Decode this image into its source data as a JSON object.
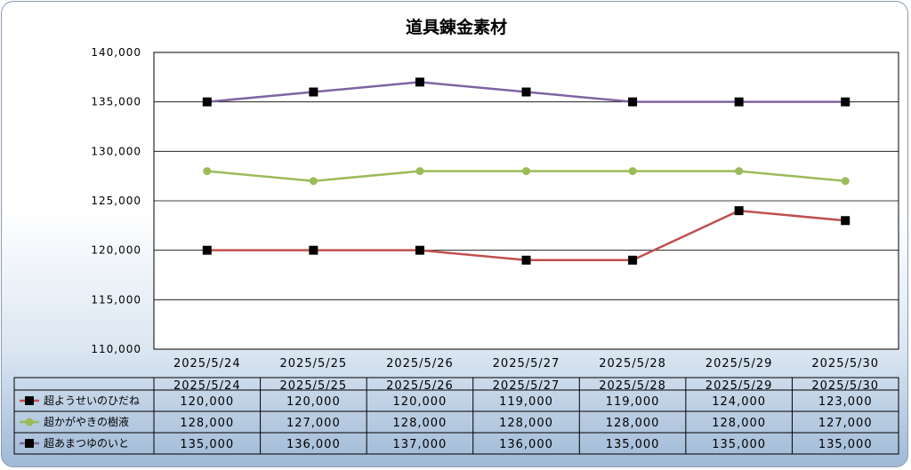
{
  "chart_data": {
    "type": "line",
    "title": "道具錬金素材",
    "categories": [
      "2025/5/24",
      "2025/5/25",
      "2025/5/26",
      "2025/5/27",
      "2025/5/28",
      "2025/5/29",
      "2025/5/30"
    ],
    "ylim": [
      110000,
      140000
    ],
    "yticks": [
      110000,
      115000,
      120000,
      125000,
      130000,
      135000,
      140000
    ],
    "grid": true,
    "series": [
      {
        "name": "超ようせいのひだね",
        "color": "#c0504d",
        "marker": "square",
        "values": [
          120000,
          120000,
          120000,
          119000,
          119000,
          124000,
          123000
        ]
      },
      {
        "name": "超かがやきの樹液",
        "color": "#9bbb59",
        "marker": "circle",
        "values": [
          128000,
          127000,
          128000,
          128000,
          128000,
          128000,
          127000
        ]
      },
      {
        "name": "超あまつゆのいと",
        "color": "#8064a2",
        "marker": "square",
        "values": [
          135000,
          136000,
          137000,
          136000,
          135000,
          135000,
          135000
        ]
      }
    ]
  }
}
